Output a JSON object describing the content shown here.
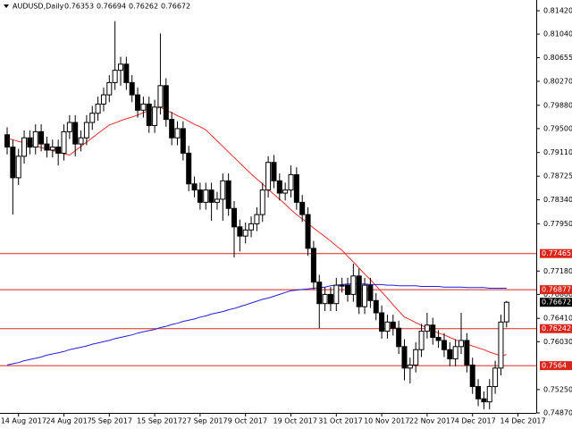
{
  "chart_data": {
    "type": "candlestick",
    "title": "AUDUSD,Daily",
    "categories": [
      null,
      null,
      "14 Aug 2017",
      null,
      null,
      null,
      null,
      null,
      null,
      null,
      "24 Aug 2017",
      null,
      null,
      null,
      null,
      null,
      null,
      null,
      "5 Sep 2017",
      null,
      null,
      null,
      null,
      null,
      null,
      null,
      "15 Sep 2017",
      null,
      null,
      null,
      null,
      null,
      null,
      null,
      "27 Sep 2017",
      null,
      null,
      null,
      null,
      null,
      null,
      null,
      "9 Oct 2017",
      null,
      null,
      null,
      null,
      null,
      null,
      null,
      "19 Oct 2017",
      null,
      null,
      null,
      null,
      null,
      null,
      null,
      "31 Oct 2017",
      null,
      null,
      null,
      null,
      null,
      null,
      null,
      "10 Nov 2017",
      null,
      null,
      null,
      null,
      null,
      null,
      null,
      "22 Nov 2017",
      null,
      null,
      null,
      null,
      null,
      null,
      null,
      "4 Dec 2017",
      null,
      null,
      null,
      null,
      null,
      null,
      null,
      "14 Dec 2017"
    ],
    "open": [
      0.794,
      0.792,
      0.787,
      0.7905,
      0.7935,
      0.792,
      0.7945,
      0.7925,
      0.7915,
      0.792,
      0.791,
      0.7945,
      0.796,
      0.7925,
      0.7935,
      0.796,
      0.7975,
      0.799,
      0.8005,
      0.8025,
      0.8045,
      0.8055,
      0.8025,
      0.8005,
      0.798,
      0.799,
      0.7955,
      0.7985,
      0.802,
      0.7965,
      0.7935,
      0.795,
      0.791,
      0.786,
      0.785,
      0.783,
      0.785,
      0.783,
      0.7835,
      0.7865,
      0.782,
      0.779,
      0.7775,
      0.7785,
      0.7795,
      0.781,
      0.785,
      0.7895,
      0.7865,
      0.7845,
      0.785,
      0.7875,
      0.783,
      0.781,
      0.7755,
      0.77,
      0.7665,
      0.768,
      0.7665,
      0.7695,
      0.7695,
      0.768,
      0.771,
      0.766,
      0.7695,
      0.767,
      0.765,
      0.762,
      0.7635,
      0.7625,
      0.7595,
      0.756,
      0.7565,
      0.759,
      0.762,
      0.763,
      0.761,
      0.7605,
      0.759,
      0.7575,
      0.7595,
      0.7605,
      0.7565,
      0.753,
      0.751,
      0.7505,
      0.753,
      0.756,
      0.76353,
      null,
      null
    ],
    "high": [
      0.7952,
      0.7932,
      0.7917,
      0.7947,
      0.7947,
      0.7957,
      0.7957,
      0.7937,
      0.7932,
      0.7932,
      0.7957,
      0.7972,
      0.7972,
      0.7947,
      0.7972,
      0.7987,
      0.8002,
      0.8017,
      0.8037,
      0.8125,
      0.8067,
      0.8067,
      0.8037,
      0.8017,
      0.8002,
      0.8002,
      0.7997,
      0.8105,
      0.8032,
      0.7977,
      0.7962,
      0.7962,
      0.7922,
      0.7872,
      0.7862,
      0.7862,
      0.7862,
      0.7847,
      0.7877,
      0.7877,
      0.7832,
      0.7802,
      0.7797,
      0.7807,
      0.7822,
      0.7862,
      0.7905,
      0.7907,
      0.7877,
      0.7862,
      0.789,
      0.7887,
      0.7842,
      0.7822,
      0.7767,
      0.7712,
      0.7692,
      0.7692,
      0.7707,
      0.7707,
      0.7707,
      0.773,
      0.7722,
      0.7707,
      0.7707,
      0.7682,
      0.7662,
      0.7647,
      0.7647,
      0.7637,
      0.7607,
      0.7577,
      0.7602,
      0.7632,
      0.765,
      0.7642,
      0.7622,
      0.7617,
      0.7602,
      0.7607,
      0.765,
      0.7617,
      0.7577,
      0.7542,
      0.7522,
      0.7542,
      0.7572,
      0.7647,
      0.76694,
      null,
      null
    ],
    "low": [
      0.7908,
      0.781,
      0.7858,
      0.7893,
      0.7908,
      0.7908,
      0.7913,
      0.7903,
      0.7903,
      0.789,
      0.7898,
      0.7933,
      0.7905,
      0.7913,
      0.7923,
      0.7948,
      0.7963,
      0.7978,
      0.7993,
      0.8013,
      0.802,
      0.8013,
      0.7993,
      0.7968,
      0.7968,
      0.7943,
      0.7943,
      0.7973,
      0.7953,
      0.7923,
      0.7923,
      0.7898,
      0.7848,
      0.7838,
      0.7818,
      0.7818,
      0.78,
      0.7818,
      0.78,
      0.7808,
      0.774,
      0.775,
      0.7763,
      0.7773,
      0.7783,
      0.7798,
      0.7838,
      0.7853,
      0.7833,
      0.7833,
      0.7838,
      0.7818,
      0.7798,
      0.7743,
      0.7688,
      0.7625,
      0.7653,
      0.7653,
      0.7653,
      0.7683,
      0.7668,
      0.7668,
      0.7648,
      0.7648,
      0.7658,
      0.7638,
      0.7608,
      0.7608,
      0.7613,
      0.7583,
      0.754,
      0.7535,
      0.7553,
      0.7578,
      0.7608,
      0.7598,
      0.7593,
      0.7578,
      0.7563,
      0.7563,
      0.7583,
      0.7553,
      0.7518,
      0.7498,
      0.7493,
      0.7493,
      0.7518,
      0.7548,
      0.76262,
      null,
      null
    ],
    "close": [
      0.792,
      0.787,
      0.7905,
      0.7935,
      0.792,
      0.7945,
      0.7925,
      0.7915,
      0.792,
      0.791,
      0.7945,
      0.796,
      0.7925,
      0.7935,
      0.796,
      0.7975,
      0.799,
      0.8005,
      0.8025,
      0.8045,
      0.8055,
      0.8025,
      0.8005,
      0.798,
      0.799,
      0.7955,
      0.7985,
      0.802,
      0.7965,
      0.7935,
      0.795,
      0.791,
      0.786,
      0.785,
      0.783,
      0.785,
      0.783,
      0.7835,
      0.7865,
      0.782,
      0.779,
      0.7775,
      0.7785,
      0.7795,
      0.781,
      0.785,
      0.7895,
      0.7865,
      0.7845,
      0.785,
      0.7875,
      0.783,
      0.781,
      0.7755,
      0.77,
      0.7665,
      0.768,
      0.7665,
      0.7695,
      0.7695,
      0.768,
      0.771,
      0.766,
      0.7695,
      0.767,
      0.765,
      0.762,
      0.7635,
      0.7625,
      0.7595,
      0.756,
      0.7565,
      0.759,
      0.762,
      0.763,
      0.761,
      0.7605,
      0.759,
      0.7575,
      0.7595,
      0.7605,
      0.7565,
      0.753,
      0.751,
      0.7505,
      0.753,
      0.756,
      0.7635,
      0.76672,
      null,
      null
    ],
    "bull_color": "#ffffff",
    "bear_color": "#000000",
    "lines": [
      {
        "color": "#e8302a",
        "values": [
          0.7934,
          0.7932,
          0.7929,
          0.7927,
          0.7924,
          0.7922,
          0.7919,
          0.7917,
          0.7914,
          0.7912,
          0.7909,
          0.7907,
          0.7914,
          0.7921,
          0.7928,
          0.7935,
          0.7942,
          0.7949,
          0.7956,
          0.7959,
          0.7963,
          0.7966,
          0.7969,
          0.7972,
          0.7976,
          0.7979,
          0.7982,
          0.7985,
          0.798,
          0.7976,
          0.7971,
          0.7967,
          0.7962,
          0.7957,
          0.7953,
          0.7948,
          0.7939,
          0.793,
          0.7921,
          0.7912,
          0.7903,
          0.7894,
          0.7885,
          0.7876,
          0.7868,
          0.786,
          0.7851,
          0.7843,
          0.7835,
          0.7827,
          0.7818,
          0.781,
          0.7803,
          0.7796,
          0.7788,
          0.7781,
          0.7774,
          0.7767,
          0.7759,
          0.7752,
          0.7742,
          0.7733,
          0.7723,
          0.7713,
          0.7704,
          0.7694,
          0.7684,
          0.7674,
          0.7663,
          0.7653,
          0.7643,
          0.7639,
          0.7634,
          0.763,
          0.7625,
          0.7621,
          0.7617,
          0.7614,
          0.761,
          0.7606,
          0.7603,
          0.7599,
          0.7596,
          0.7593,
          0.759,
          0.7586,
          0.7583,
          0.758,
          0.7582,
          null,
          null
        ]
      },
      {
        "color": "#2020e0",
        "values": [
          0.7565,
          0.7567,
          0.7569,
          0.7572,
          0.7574,
          0.7576,
          0.7578,
          0.7581,
          0.7583,
          0.7585,
          0.7587,
          0.759,
          0.7592,
          0.7594,
          0.7596,
          0.7599,
          0.7601,
          0.7603,
          0.7605,
          0.7608,
          0.761,
          0.7612,
          0.7614,
          0.7617,
          0.7619,
          0.7621,
          0.7623,
          0.7626,
          0.7628,
          0.7631,
          0.7633,
          0.7636,
          0.7638,
          0.764,
          0.7643,
          0.7645,
          0.7648,
          0.765,
          0.7652,
          0.7655,
          0.7657,
          0.766,
          0.7663,
          0.7666,
          0.7669,
          0.7672,
          0.7674,
          0.7677,
          0.768,
          0.7683,
          0.7686,
          0.7687,
          0.7688,
          0.7689,
          0.769,
          0.7691,
          0.7692,
          0.7694,
          0.7695,
          0.7696,
          0.7697,
          0.7697,
          0.7697,
          0.7697,
          0.7696,
          0.7696,
          0.7696,
          0.7695,
          0.7695,
          0.7694,
          0.7694,
          0.7694,
          0.7694,
          0.7693,
          0.7693,
          0.7693,
          0.7693,
          0.7692,
          0.7692,
          0.7692,
          0.7692,
          0.7691,
          0.7691,
          0.7691,
          0.7691,
          0.769,
          0.769,
          0.769,
          0.769,
          null,
          null
        ]
      }
    ],
    "levels": [
      0.77465,
      0.76877,
      0.76242,
      0.7564
    ],
    "level_color": "#d9261c",
    "ylim": [
      0.7487,
      0.8142
    ],
    "yticks": [
      {
        "value": 0.8142,
        "label": "0.81420"
      },
      {
        "value": 0.8104,
        "label": "0.81040"
      },
      0.80655,
      {
        "value": 0.8027,
        "label": "0.80270"
      },
      {
        "value": 0.7988,
        "label": "0.79880"
      },
      {
        "value": 0.795,
        "label": "0.79500"
      },
      {
        "value": 0.7911,
        "label": "0.79110"
      },
      0.78725,
      {
        "value": 0.7834,
        "label": "0.78340"
      },
      {
        "value": 0.7795,
        "label": "0.77950"
      },
      {
        "value": 0.7718,
        "label": "0.77180"
      },
      {
        "value": 0.768,
        "label": "0.76800"
      },
      {
        "value": 0.7641,
        "label": "0.76410"
      },
      {
        "value": 0.7603,
        "label": "0.76030"
      },
      {
        "value": 0.7525,
        "label": "0.75250"
      },
      {
        "value": 0.7487,
        "label": "0.74870"
      }
    ]
  }
}
